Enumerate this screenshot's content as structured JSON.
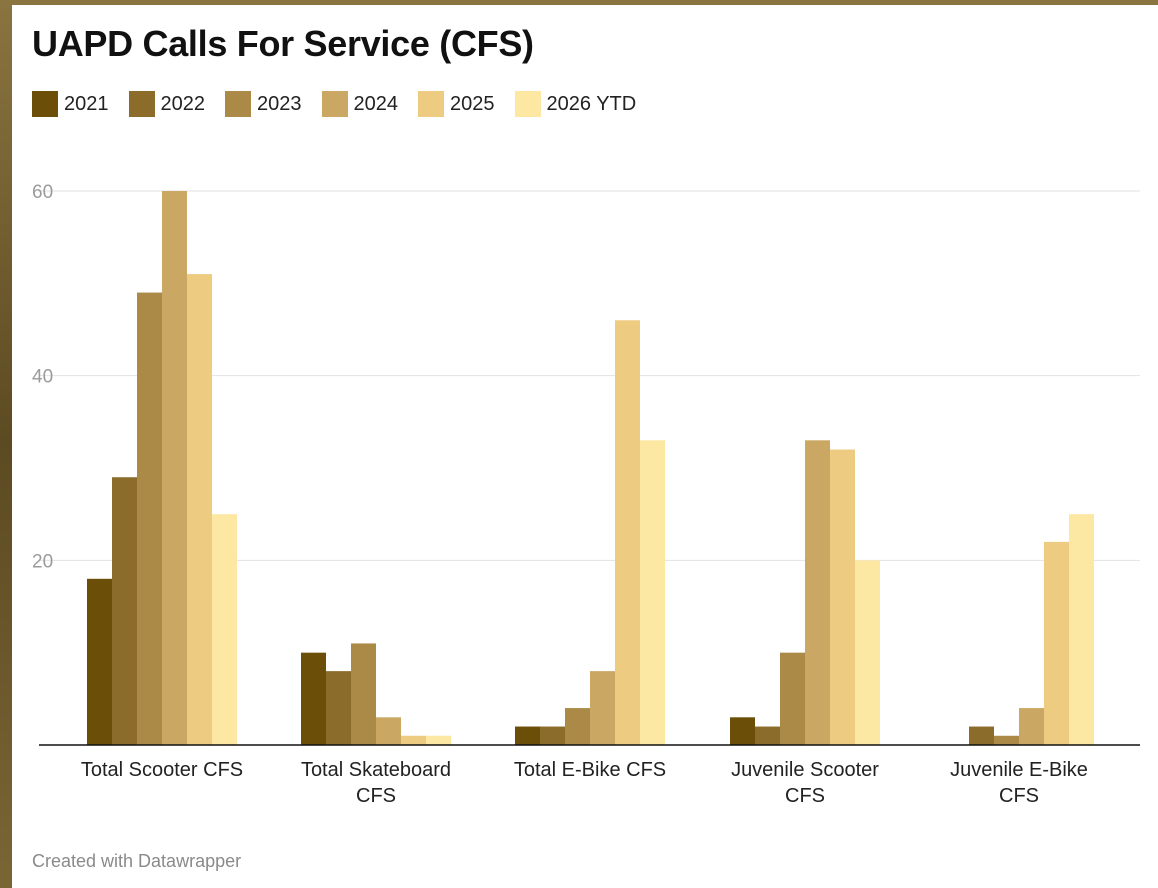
{
  "chart_data": {
    "type": "bar",
    "title": "UAPD Calls For Service (CFS)",
    "categories": [
      [
        "Total Scooter CFS"
      ],
      [
        "Total Skateboard",
        "CFS"
      ],
      [
        "Total E-Bike CFS"
      ],
      [
        "Juvenile Scooter",
        "CFS"
      ],
      [
        "Juvenile E-Bike",
        "CFS"
      ]
    ],
    "series": [
      {
        "name": "2021",
        "color": "#6b4e08",
        "values": [
          18,
          10,
          2,
          3,
          0
        ]
      },
      {
        "name": "2022",
        "color": "#8c6c2a",
        "values": [
          29,
          8,
          2,
          2,
          2
        ]
      },
      {
        "name": "2023",
        "color": "#ab8a48",
        "values": [
          49,
          11,
          4,
          10,
          1
        ]
      },
      {
        "name": "2024",
        "color": "#cba764",
        "values": [
          60,
          3,
          8,
          33,
          4
        ]
      },
      {
        "name": "2025",
        "color": "#edcb81",
        "values": [
          51,
          1,
          46,
          32,
          22
        ]
      },
      {
        "name": "2026 YTD",
        "color": "#fde8a3",
        "values": [
          25,
          1,
          33,
          20,
          25
        ]
      }
    ],
    "ylim": [
      0,
      60
    ],
    "yticks": [
      20,
      40,
      60
    ],
    "grid": true,
    "legend": "top-left",
    "xlabel": "",
    "ylabel": ""
  },
  "footer": "Created with Datawrapper"
}
